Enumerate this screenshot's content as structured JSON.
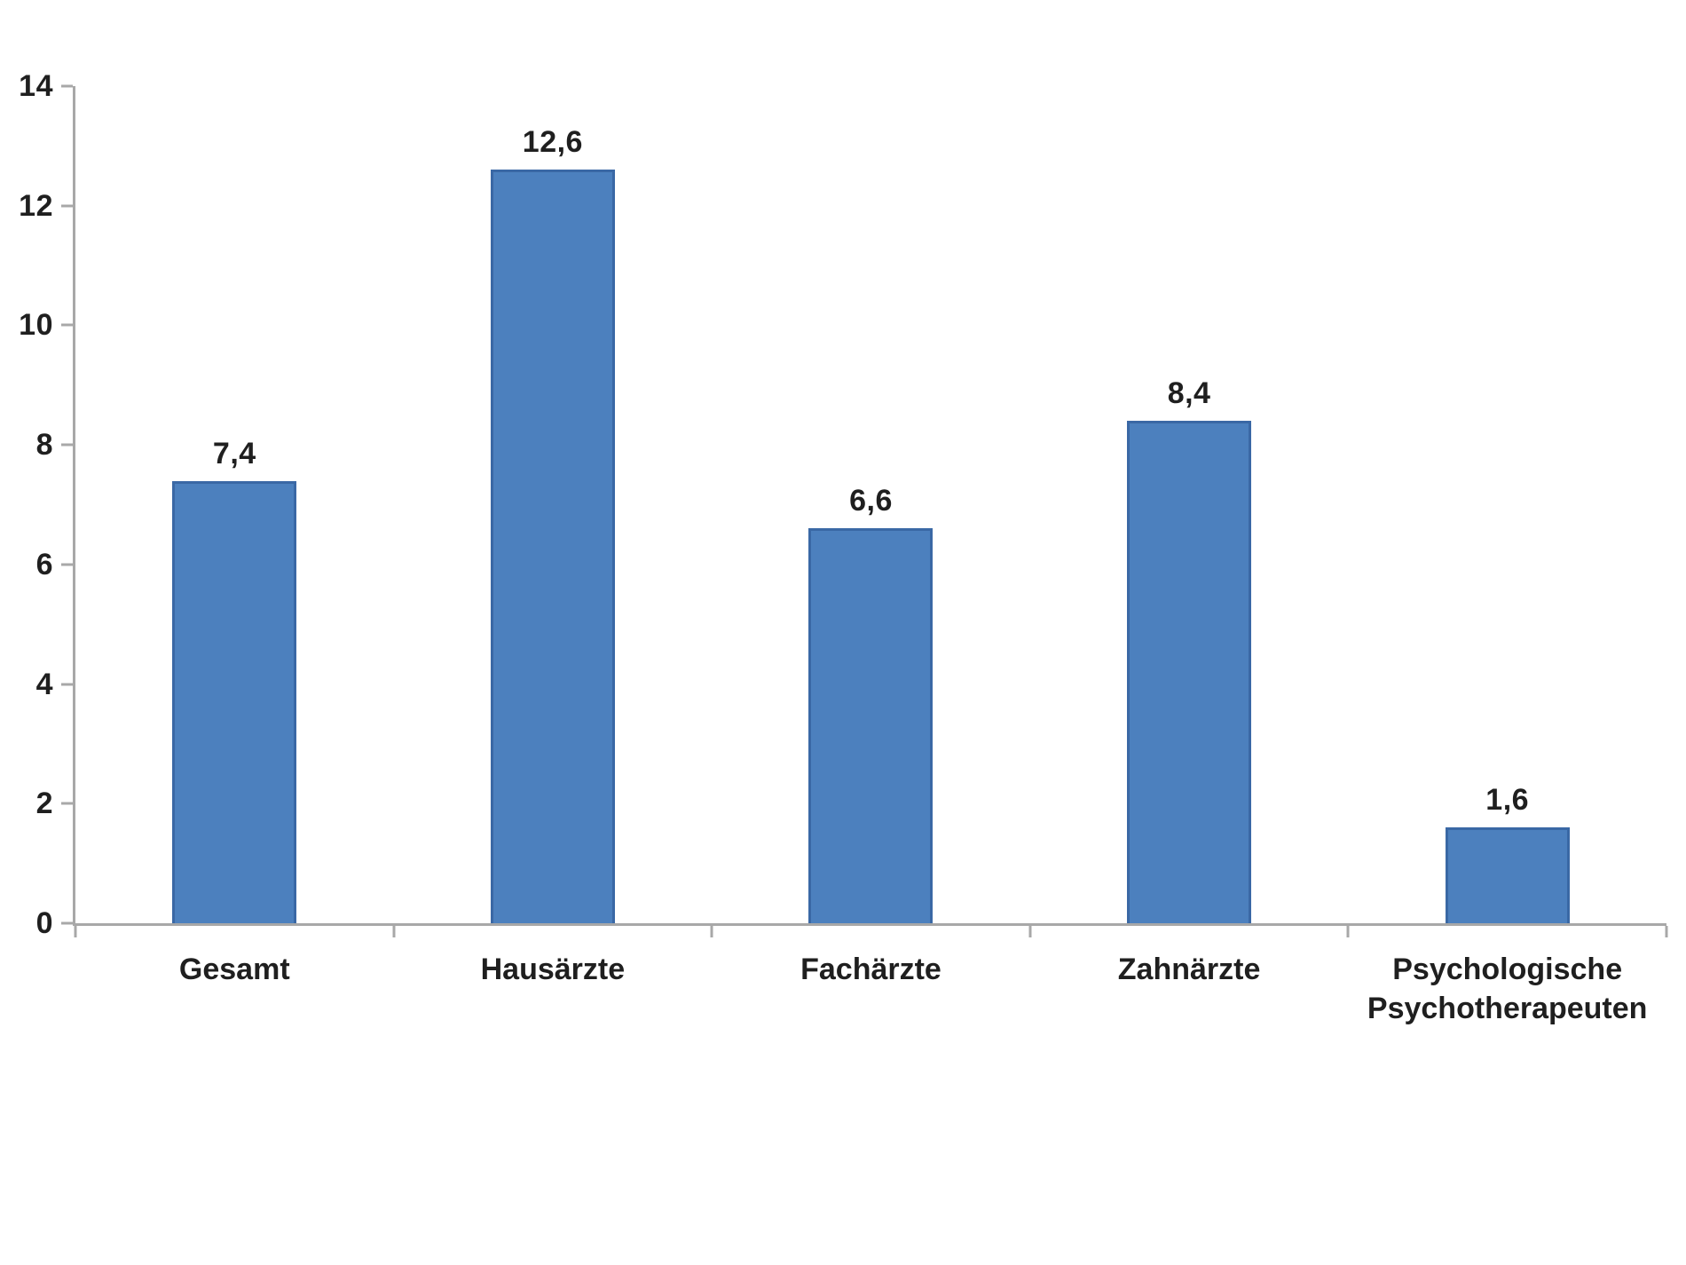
{
  "chart_data": {
    "type": "bar",
    "categories": [
      "Gesamt",
      "Hausärzte",
      "Fachärzte",
      "Zahnärzte",
      "Psychologische Psychotherapeuten"
    ],
    "values": [
      7.4,
      12.6,
      6.6,
      8.4,
      1.6
    ],
    "value_labels": [
      "7,4",
      "12,6",
      "6,6",
      "8,4",
      "1,6"
    ],
    "yticks": [
      "0",
      "2",
      "4",
      "6",
      "8",
      "10",
      "12",
      "14"
    ],
    "ytick_values": [
      0,
      2,
      4,
      6,
      8,
      10,
      12,
      14
    ],
    "ylim": [
      0,
      14
    ],
    "title": "",
    "xlabel": "",
    "ylabel": "",
    "grid": false,
    "legend": false,
    "bar_color": "#4c80be",
    "bar_border_color": "#3a68a5",
    "axis_color": "#a8a8a8",
    "text_color": "#1f1f1f",
    "background_color": "#ffffff"
  }
}
